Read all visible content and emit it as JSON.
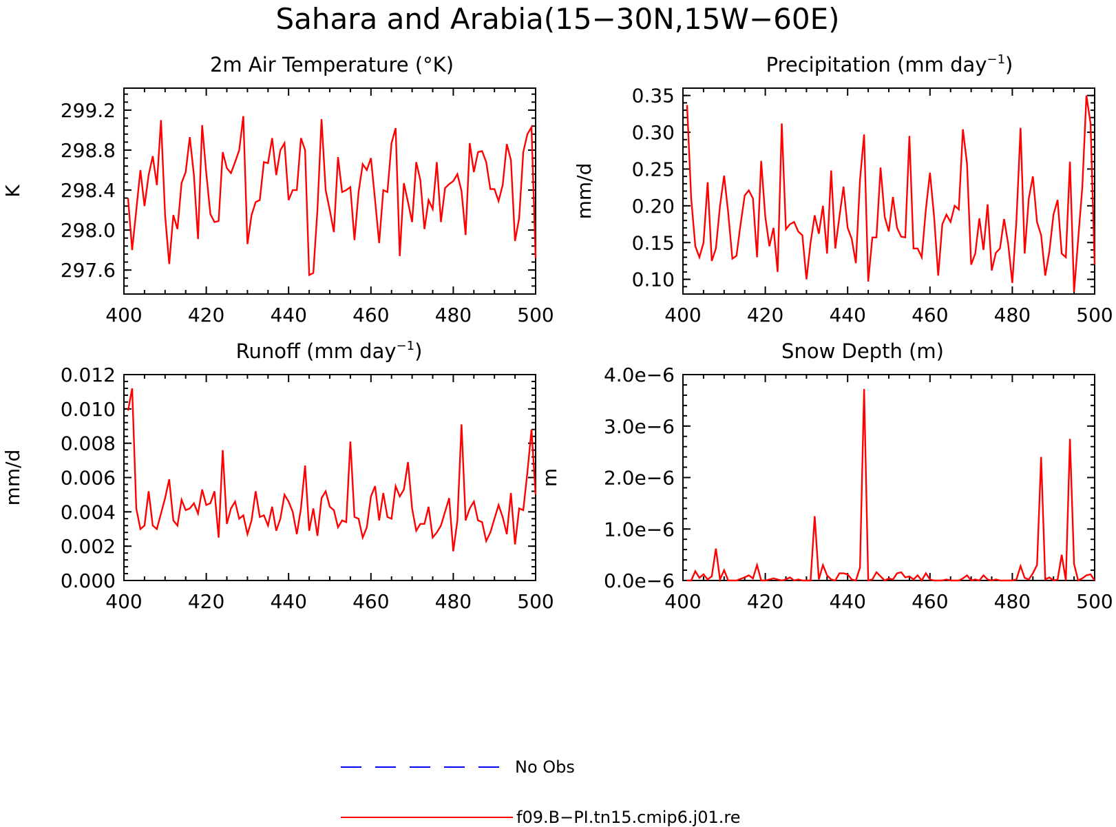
{
  "figure": {
    "title": "Sahara and Arabia(15−30N,15W−60E)"
  },
  "legend": [
    {
      "label": "No Obs",
      "color": "#0000ff",
      "style": "dashed"
    },
    {
      "label": "f09.B−PI.tn15.cmip6.j01.re",
      "color": "#ff0000",
      "style": "solid"
    }
  ],
  "chart_data": [
    {
      "type": "line",
      "title": "2m Air Temperature (°K)",
      "ylabel": "K",
      "xlim": [
        400,
        500
      ],
      "ylim": [
        297.36,
        299.42
      ],
      "xticks": [
        400,
        420,
        440,
        460,
        480,
        500
      ],
      "yticks": [
        297.6,
        298.0,
        298.4,
        298.8,
        299.2
      ],
      "ytick_labels": [
        "297.6",
        "298.0",
        "298.4",
        "298.8",
        "299.2"
      ],
      "series": [
        {
          "name": "f09.B−PI.tn15.cmip6.j01.re",
          "color": "#ff0000",
          "x": [
            401,
            402,
            403,
            404,
            405,
            406,
            407,
            408,
            409,
            410,
            411,
            412,
            413,
            414,
            415,
            416,
            417,
            418,
            419,
            420,
            421,
            422,
            423,
            424,
            425,
            426,
            427,
            428,
            429,
            430,
            431,
            432,
            433,
            434,
            435,
            436,
            437,
            438,
            439,
            440,
            441,
            442,
            443,
            444,
            445,
            446,
            447,
            448,
            449,
            450,
            451,
            452,
            453,
            454,
            455,
            456,
            457,
            458,
            459,
            460,
            461,
            462,
            463,
            464,
            465,
            466,
            467,
            468,
            469,
            470,
            471,
            472,
            473,
            474,
            475,
            476,
            477,
            478,
            479,
            480,
            481,
            482,
            483,
            484,
            485,
            486,
            487,
            488,
            489,
            490,
            491,
            492,
            493,
            494,
            495,
            496,
            497,
            498,
            499,
            500
          ],
          "values": [
            298.32,
            297.8,
            298.2,
            298.6,
            298.24,
            298.55,
            298.74,
            298.45,
            299.1,
            298.15,
            297.66,
            298.15,
            298.01,
            298.47,
            298.58,
            298.93,
            298.55,
            297.91,
            299.05,
            298.57,
            298.16,
            298.08,
            298.09,
            298.78,
            298.62,
            298.57,
            298.68,
            298.8,
            299.14,
            297.86,
            298.15,
            298.28,
            298.3,
            298.68,
            298.67,
            298.92,
            298.55,
            298.8,
            298.87,
            298.3,
            298.4,
            298.4,
            298.92,
            298.8,
            297.55,
            297.57,
            298.2,
            299.11,
            298.4,
            298.2,
            297.98,
            298.73,
            298.38,
            298.4,
            298.43,
            297.9,
            298.38,
            298.66,
            298.6,
            298.72,
            298.3,
            297.87,
            298.4,
            298.38,
            298.87,
            299.02,
            297.74,
            298.47,
            298.28,
            298.08,
            298.68,
            298.5,
            298.01,
            298.3,
            298.21,
            298.68,
            298.08,
            298.42,
            298.46,
            298.49,
            298.56,
            298.39,
            297.95,
            298.87,
            298.58,
            298.78,
            298.79,
            298.68,
            298.41,
            298.41,
            298.29,
            298.45,
            298.86,
            298.7,
            297.89,
            298.12,
            298.78,
            298.96,
            299.03,
            297.72
          ]
        }
      ]
    },
    {
      "type": "line",
      "title": "Precipitation (mm day",
      "title_sup": "−1",
      "title_end": ")",
      "ylabel": "mm/d",
      "xlim": [
        400,
        500
      ],
      "ylim": [
        0.08,
        0.36
      ],
      "xticks": [
        400,
        420,
        440,
        460,
        480,
        500
      ],
      "yticks": [
        0.1,
        0.15,
        0.2,
        0.25,
        0.3,
        0.35
      ],
      "ytick_labels": [
        "0.10",
        "0.15",
        "0.20",
        "0.25",
        "0.30",
        "0.35"
      ],
      "series": [
        {
          "name": "f09.B−PI.tn15.cmip6.j01.re",
          "color": "#ff0000",
          "x": [
            401,
            402,
            403,
            404,
            405,
            406,
            407,
            408,
            409,
            410,
            411,
            412,
            413,
            414,
            415,
            416,
            417,
            418,
            419,
            420,
            421,
            422,
            423,
            424,
            425,
            426,
            427,
            428,
            429,
            430,
            431,
            432,
            433,
            434,
            435,
            436,
            437,
            438,
            439,
            440,
            441,
            442,
            443,
            444,
            445,
            446,
            447,
            448,
            449,
            450,
            451,
            452,
            453,
            454,
            455,
            456,
            457,
            458,
            459,
            460,
            461,
            462,
            463,
            464,
            465,
            466,
            467,
            468,
            469,
            470,
            471,
            472,
            473,
            474,
            475,
            476,
            477,
            478,
            479,
            480,
            481,
            482,
            483,
            484,
            485,
            486,
            487,
            488,
            489,
            490,
            491,
            492,
            493,
            494,
            495,
            496,
            497,
            498,
            499,
            500
          ],
          "values": [
            0.337,
            0.21,
            0.145,
            0.13,
            0.15,
            0.232,
            0.125,
            0.142,
            0.2,
            0.241,
            0.19,
            0.128,
            0.132,
            0.175,
            0.214,
            0.221,
            0.21,
            0.13,
            0.261,
            0.185,
            0.145,
            0.17,
            0.11,
            0.312,
            0.168,
            0.175,
            0.178,
            0.165,
            0.16,
            0.1,
            0.15,
            0.187,
            0.162,
            0.2,
            0.135,
            0.248,
            0.142,
            0.185,
            0.226,
            0.17,
            0.155,
            0.122,
            0.235,
            0.297,
            0.097,
            0.157,
            0.157,
            0.252,
            0.185,
            0.165,
            0.212,
            0.17,
            0.158,
            0.157,
            0.295,
            0.142,
            0.142,
            0.13,
            0.195,
            0.245,
            0.185,
            0.105,
            0.175,
            0.188,
            0.178,
            0.2,
            0.195,
            0.304,
            0.257,
            0.12,
            0.135,
            0.183,
            0.14,
            0.202,
            0.112,
            0.136,
            0.142,
            0.182,
            0.148,
            0.095,
            0.18,
            0.306,
            0.135,
            0.21,
            0.24,
            0.178,
            0.16,
            0.105,
            0.138,
            0.188,
            0.208,
            0.135,
            0.13,
            0.26,
            0.083,
            0.155,
            0.225,
            0.35,
            0.312,
            0.12
          ]
        }
      ]
    },
    {
      "type": "line",
      "title": "Runoff (mm day",
      "title_sup": "−1",
      "title_end": ")",
      "ylabel": "mm/d",
      "xlim": [
        400,
        500
      ],
      "ylim": [
        0.0,
        0.012
      ],
      "xticks": [
        400,
        420,
        440,
        460,
        480,
        500
      ],
      "yticks": [
        0.0,
        0.002,
        0.004,
        0.006,
        0.008,
        0.01,
        0.012
      ],
      "ytick_labels": [
        "0.000",
        "0.002",
        "0.004",
        "0.006",
        "0.008",
        "0.010",
        "0.012"
      ],
      "series": [
        {
          "name": "f09.B−PI.tn15.cmip6.j01.re",
          "color": "#ff0000",
          "x": [
            401,
            402,
            403,
            404,
            405,
            406,
            407,
            408,
            409,
            410,
            411,
            412,
            413,
            414,
            415,
            416,
            417,
            418,
            419,
            420,
            421,
            422,
            423,
            424,
            425,
            426,
            427,
            428,
            429,
            430,
            431,
            432,
            433,
            434,
            435,
            436,
            437,
            438,
            439,
            440,
            441,
            442,
            443,
            444,
            445,
            446,
            447,
            448,
            449,
            450,
            451,
            452,
            453,
            454,
            455,
            456,
            457,
            458,
            459,
            460,
            461,
            462,
            463,
            464,
            465,
            466,
            467,
            468,
            469,
            470,
            471,
            472,
            473,
            474,
            475,
            476,
            477,
            478,
            479,
            480,
            481,
            482,
            483,
            484,
            485,
            486,
            487,
            488,
            489,
            490,
            491,
            492,
            493,
            494,
            495,
            496,
            497,
            498,
            499,
            500
          ],
          "values": [
            0.0099,
            0.0112,
            0.0042,
            0.003,
            0.0032,
            0.0052,
            0.0032,
            0.003,
            0.0039,
            0.0048,
            0.0059,
            0.0035,
            0.0032,
            0.0047,
            0.0041,
            0.0042,
            0.0045,
            0.0039,
            0.0053,
            0.0044,
            0.0045,
            0.0052,
            0.0025,
            0.0076,
            0.0033,
            0.0042,
            0.0046,
            0.0036,
            0.0038,
            0.0027,
            0.0035,
            0.0052,
            0.0037,
            0.0038,
            0.0032,
            0.0043,
            0.0029,
            0.0036,
            0.005,
            0.0046,
            0.004,
            0.0027,
            0.0042,
            0.0067,
            0.0029,
            0.0042,
            0.0026,
            0.0048,
            0.0052,
            0.0043,
            0.0041,
            0.0031,
            0.0035,
            0.0034,
            0.0081,
            0.0037,
            0.0036,
            0.0025,
            0.0031,
            0.0049,
            0.0055,
            0.0035,
            0.0051,
            0.0037,
            0.0036,
            0.0055,
            0.0049,
            0.0053,
            0.0069,
            0.0042,
            0.0029,
            0.0033,
            0.0033,
            0.0043,
            0.0025,
            0.0028,
            0.0032,
            0.004,
            0.0048,
            0.0017,
            0.0035,
            0.0091,
            0.0035,
            0.0042,
            0.0046,
            0.0035,
            0.0034,
            0.0023,
            0.0028,
            0.0036,
            0.0044,
            0.0037,
            0.0027,
            0.0051,
            0.0021,
            0.0042,
            0.0041,
            0.0063,
            0.0088,
            0.005
          ]
        }
      ]
    },
    {
      "type": "line",
      "title": "Snow Depth (m)",
      "ylabel": "m",
      "xlim": [
        400,
        500
      ],
      "ylim": [
        0.0,
        4e-06
      ],
      "xticks": [
        400,
        420,
        440,
        460,
        480,
        500
      ],
      "yticks": [
        0.0,
        1e-06,
        2e-06,
        3e-06,
        4e-06
      ],
      "ytick_labels": [
        "0.0e−6",
        "1.0e−6",
        "2.0e−6",
        "3.0e−6",
        "4.0e−6"
      ],
      "series": [
        {
          "name": "f09.B−PI.tn15.cmip6.j01.re",
          "color": "#ff0000",
          "x": [
            401,
            402,
            403,
            404,
            405,
            406,
            407,
            408,
            409,
            410,
            411,
            412,
            413,
            414,
            415,
            416,
            417,
            418,
            419,
            420,
            421,
            422,
            423,
            424,
            425,
            426,
            427,
            428,
            429,
            430,
            431,
            432,
            433,
            434,
            435,
            436,
            437,
            438,
            439,
            440,
            441,
            442,
            443,
            444,
            445,
            446,
            447,
            448,
            449,
            450,
            451,
            452,
            453,
            454,
            455,
            456,
            457,
            458,
            459,
            460,
            461,
            462,
            463,
            464,
            465,
            466,
            467,
            468,
            469,
            470,
            471,
            472,
            473,
            474,
            475,
            476,
            477,
            478,
            479,
            480,
            481,
            482,
            483,
            484,
            485,
            486,
            487,
            488,
            489,
            490,
            491,
            492,
            493,
            494,
            495,
            496,
            497,
            498,
            499,
            500
          ],
          "values": [
            0.0,
            0.0,
            1.8e-07,
            5e-08,
            1.2e-07,
            2e-08,
            8e-08,
            6.2e-07,
            2e-08,
            2e-07,
            0.0,
            0.0,
            0.0,
            3e-08,
            6e-08,
            1e-07,
            4e-08,
            3e-07,
            0.0,
            0.0,
            2e-08,
            4e-08,
            2e-08,
            0.0,
            2e-08,
            6e-08,
            0.0,
            2e-08,
            0.0,
            0.0,
            0.0,
            1.25e-06,
            2e-08,
            3e-07,
            1e-07,
            2e-08,
            0.0,
            1.4e-07,
            1.4e-07,
            1.2e-07,
            2e-08,
            0.0,
            2.5e-07,
            3.72e-06,
            0.0,
            2e-08,
            1.6e-07,
            8e-08,
            0.0,
            4e-08,
            2e-08,
            1.4e-07,
            1.6e-07,
            6e-08,
            8e-08,
            2e-08,
            1e-07,
            0.0,
            1.4e-07,
            2e-08,
            0.0,
            0.0,
            0.0,
            2e-08,
            0.0,
            0.0,
            0.0,
            4e-08,
            1e-07,
            0.0,
            2e-08,
            0.0,
            1e-07,
            2e-08,
            0.0,
            2e-08,
            0.0,
            0.0,
            0.0,
            0.0,
            2e-08,
            2.8e-07,
            5e-08,
            2e-08,
            1.4e-07,
            3e-07,
            2.4e-06,
            2e-08,
            6e-08,
            0.0,
            2e-08,
            5e-07,
            0.0,
            2.75e-06,
            3.2e-07,
            0.0,
            4e-08,
            1e-07,
            1.2e-07,
            0.0
          ]
        }
      ]
    }
  ]
}
